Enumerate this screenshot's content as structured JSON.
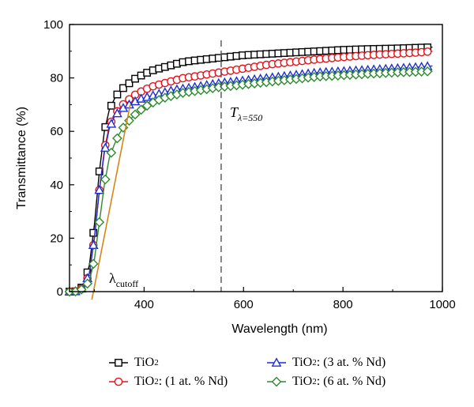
{
  "chart_data": {
    "type": "line",
    "xlabel": "Wavelength (nm)",
    "ylabel": "Transmittance (%)",
    "xlim": [
      250,
      1000
    ],
    "ylim": [
      0,
      100
    ],
    "xticks": [
      400,
      600,
      800,
      1000
    ],
    "yticks": [
      0,
      20,
      40,
      60,
      80,
      100
    ],
    "grid": false,
    "legend_position": "bottom",
    "annotations": {
      "dashed_line_x": 555,
      "t_label_main": "T",
      "t_label_sub": "λ=550",
      "cutoff_main": "λ",
      "cutoff_sub": "cutoff"
    },
    "cutoff_tangent": {
      "x": [
        295,
        372
      ],
      "y": [
        -3,
        70
      ]
    },
    "series": [
      {
        "name": "TiO2",
        "name_base": "TiO",
        "name_sub": "2",
        "name_suffix": "",
        "color": "#000000",
        "marker": "square",
        "x": [
          250,
          260,
          270,
          280,
          290,
          300,
          310,
          320,
          330,
          340,
          350,
          360,
          370,
          380,
          390,
          400,
          420,
          440,
          460,
          480,
          500,
          550,
          600,
          650,
          700,
          750,
          800,
          850,
          900,
          950,
          980
        ],
        "y": [
          0,
          0,
          0.5,
          3,
          10,
          25,
          45,
          60,
          68,
          72,
          75,
          76.5,
          78,
          79.5,
          80.5,
          81.5,
          83,
          84,
          85,
          86,
          86.5,
          87.5,
          88.5,
          89,
          89.5,
          90,
          90.5,
          90.8,
          91,
          91.3,
          91.5
        ]
      },
      {
        "name": "TiO2: (1 at. % Nd)",
        "name_base": "TiO",
        "name_sub": "2",
        "name_suffix": ": (1 at. % Nd)",
        "color": "#e8121b",
        "marker": "circle",
        "x": [
          250,
          260,
          270,
          280,
          290,
          300,
          310,
          320,
          330,
          340,
          350,
          360,
          370,
          380,
          390,
          400,
          420,
          440,
          460,
          480,
          500,
          550,
          600,
          650,
          700,
          750,
          800,
          850,
          900,
          950,
          980
        ],
        "y": [
          0,
          0,
          0.5,
          2,
          7,
          20,
          38,
          53,
          62,
          66,
          68.5,
          70.5,
          72,
          73.5,
          74.5,
          75.5,
          77,
          78,
          79,
          80,
          80.5,
          82,
          83.5,
          85,
          86,
          87,
          87.8,
          88.5,
          89,
          89.5,
          90
        ]
      },
      {
        "name": "TiO2: (3 at. % Nd)",
        "name_base": "TiO",
        "name_sub": "2",
        "name_suffix": ": (3 at. % Nd)",
        "color": "#1c2fd6",
        "marker": "triangle",
        "x": [
          250,
          260,
          270,
          280,
          290,
          300,
          310,
          320,
          330,
          340,
          350,
          360,
          370,
          380,
          390,
          400,
          420,
          440,
          460,
          480,
          500,
          550,
          600,
          650,
          700,
          750,
          800,
          850,
          900,
          950,
          980
        ],
        "y": [
          0,
          0,
          0.5,
          2,
          7,
          20,
          38,
          52,
          61,
          65.5,
          67.5,
          69,
          70,
          71,
          72,
          72.5,
          73.5,
          74.5,
          75.5,
          76,
          76.5,
          78,
          79,
          80,
          81,
          82,
          82.5,
          83,
          83.5,
          84,
          84.5
        ]
      },
      {
        "name": "TiO2: (6 at. % Nd)",
        "name_base": "TiO",
        "name_sub": "2",
        "name_suffix": ": (6 at. % Nd)",
        "color": "#2e8b2e",
        "marker": "diamond",
        "x": [
          250,
          260,
          270,
          280,
          290,
          300,
          310,
          320,
          330,
          340,
          350,
          360,
          370,
          380,
          390,
          400,
          420,
          440,
          460,
          480,
          500,
          550,
          600,
          650,
          700,
          750,
          800,
          850,
          900,
          950,
          980
        ],
        "y": [
          0,
          0,
          0.3,
          1.5,
          4,
          12,
          26,
          40,
          50,
          55,
          59,
          62,
          64,
          66,
          67.5,
          69,
          71,
          72.5,
          73.5,
          74.5,
          75,
          76.5,
          77.5,
          78.5,
          79.5,
          80.5,
          81,
          81.5,
          82,
          82.3,
          82.5
        ]
      }
    ]
  }
}
